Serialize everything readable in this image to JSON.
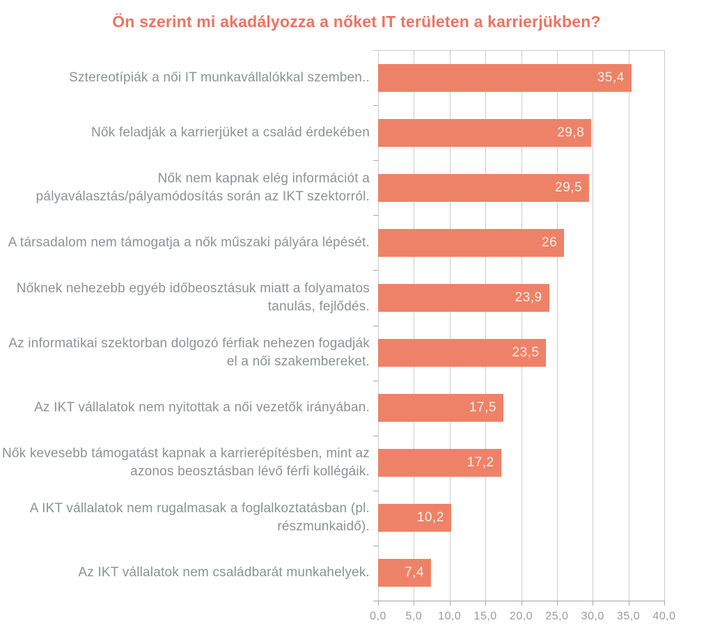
{
  "page": {
    "background": "#ffffff"
  },
  "chart_data": {
    "type": "bar",
    "orientation": "horizontal",
    "title": "Ön szerint mi akadályozza a nőket IT területen a karrierjükben?",
    "categories": [
      "Sztereotípiák  a női IT munkavállalókkal szemben..",
      "Nők feladják a karrierjüket a család érdekében",
      "Nők nem kapnak elég információt a pályaválasztás/pályamódosítás során az IKT szektorról.",
      "A társadalom nem támogatja a nők műszaki pályára lépését.",
      "Nőknek nehezebb egyéb időbeosztásuk miatt a folyamatos tanulás, fejlődés.",
      "Az informatikai szektorban dolgozó férfiak nehezen fogadják el a női szakembereket.",
      "Az IKT vállalatok nem nyitottak a női vezetők irányában.",
      "Nők kevesebb támogatást kapnak a karrierépítésben, mint az azonos beosztásban lévő férfi kollégáik.",
      "A IKT vállalatok nem rugalmasak a foglalkoztatásban (pl. részmunkaidő).",
      "Az IKT vállalatok nem családbarát munkahelyek."
    ],
    "values": [
      35.4,
      29.8,
      29.5,
      26,
      23.9,
      23.5,
      17.5,
      17.2,
      10.2,
      7.4
    ],
    "value_labels": [
      "35,4",
      "29,8",
      "29,5",
      "26",
      "23,9",
      "23,5",
      "17,5",
      "17,2",
      "10,2",
      "7,4"
    ],
    "x_ticks": [
      "0,0",
      "5,0",
      "10,0",
      "15,0",
      "20,0",
      "25,0",
      "30,0",
      "35,0",
      "40,0"
    ],
    "xlim": [
      0,
      40
    ],
    "grid": true,
    "legend": "none",
    "colors": {
      "bar": "#ee8268",
      "title": "#ef7260",
      "category_label": "#8e9194",
      "value_text": "#f9f1e8",
      "gridline": "#cbcbcb",
      "axis_line": "#a5a5a5",
      "tick_label": "#9b9b9b"
    }
  }
}
